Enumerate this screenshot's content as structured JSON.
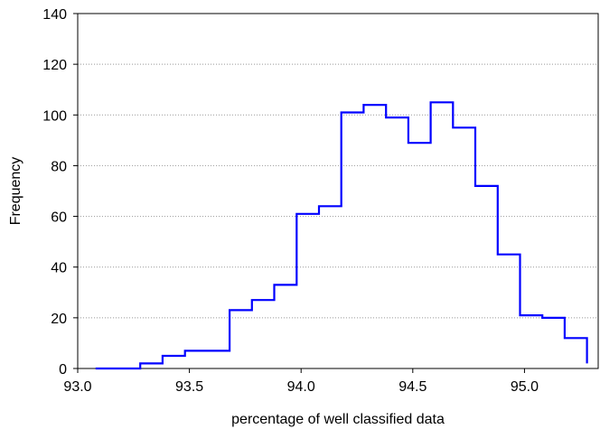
{
  "chart_data": {
    "type": "line",
    "subtype": "step-histogram",
    "xlabel": "percentage of well classified data",
    "ylabel": "Frequency",
    "xlim": [
      93.0,
      95.33
    ],
    "ylim": [
      0,
      140
    ],
    "xticks": [
      93.0,
      93.5,
      94.0,
      94.5,
      95.0
    ],
    "xtick_labels": [
      "93.0",
      "93.5",
      "94.0",
      "94.5",
      "95.0"
    ],
    "yticks": [
      0,
      20,
      40,
      60,
      80,
      100,
      120,
      140
    ],
    "ytick_labels": [
      "0",
      "20",
      "40",
      "60",
      "80",
      "100",
      "120",
      "140"
    ],
    "grid": "horizontal-dotted",
    "line_color": "#0000ff",
    "series": [
      {
        "bin_edges": [
          93.08,
          93.28,
          93.38,
          93.48,
          93.68,
          93.78,
          93.88,
          93.98,
          94.08,
          94.18,
          94.28,
          94.38,
          94.48,
          94.58,
          94.68,
          94.78,
          94.88,
          94.98,
          95.08,
          95.18,
          95.28
        ],
        "values": [
          0,
          2,
          5,
          7,
          23,
          27,
          33,
          61,
          64,
          101,
          104,
          99,
          89,
          105,
          95,
          72,
          45,
          21,
          20,
          12,
          7
        ],
        "end_value": 2
      }
    ]
  }
}
